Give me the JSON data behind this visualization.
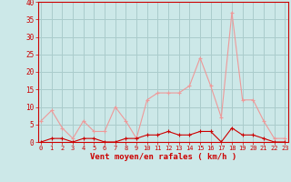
{
  "hours": [
    0,
    1,
    2,
    3,
    4,
    5,
    6,
    7,
    8,
    9,
    10,
    11,
    12,
    13,
    14,
    15,
    16,
    17,
    18,
    19,
    20,
    21,
    22,
    23
  ],
  "wind_avg": [
    0,
    1,
    1,
    0,
    1,
    1,
    0,
    0,
    1,
    1,
    2,
    2,
    3,
    2,
    2,
    3,
    3,
    0,
    4,
    2,
    2,
    1,
    0,
    0
  ],
  "wind_gust": [
    6,
    9,
    4,
    1,
    6,
    3,
    3,
    10,
    6,
    1,
    12,
    14,
    14,
    14,
    16,
    24,
    16,
    7,
    37,
    12,
    12,
    6,
    1,
    1
  ],
  "bg_color": "#cce8e8",
  "grid_color": "#aacccc",
  "line_avg_color": "#cc0000",
  "line_gust_color": "#ee9999",
  "xlabel": "Vent moyen/en rafales ( km/h )",
  "ylim": [
    0,
    40
  ],
  "yticks": [
    0,
    5,
    10,
    15,
    20,
    25,
    30,
    35,
    40
  ],
  "marker": "+"
}
